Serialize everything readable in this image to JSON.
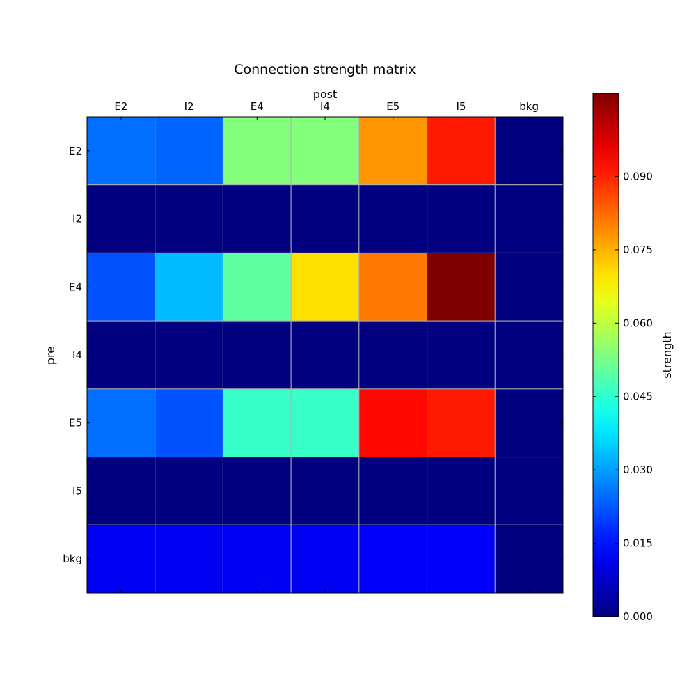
{
  "chart_data": {
    "type": "heatmap",
    "title": "Connection strength matrix",
    "xlabel": "post",
    "ylabel": "pre",
    "x_categories": [
      "E2",
      "I2",
      "E4",
      "I4",
      "E5",
      "I5",
      "bkg"
    ],
    "y_categories": [
      "E2",
      "I2",
      "E4",
      "I4",
      "E5",
      "I5",
      "bkg"
    ],
    "values": [
      [
        0.025,
        0.024,
        0.054,
        0.054,
        0.078,
        0.091,
        0.0
      ],
      [
        0.0,
        0.0,
        0.0,
        0.0,
        0.0,
        0.0,
        0.0
      ],
      [
        0.022,
        0.033,
        0.05,
        0.07,
        0.081,
        0.107,
        0.0
      ],
      [
        0.0,
        0.0,
        0.0,
        0.0,
        0.0,
        0.0,
        0.0
      ],
      [
        0.025,
        0.022,
        0.046,
        0.046,
        0.093,
        0.091,
        0.0
      ],
      [
        0.0,
        0.0,
        0.0,
        0.0,
        0.0,
        0.0,
        0.0
      ],
      [
        0.012,
        0.012,
        0.012,
        0.012,
        0.013,
        0.013,
        0.0
      ]
    ],
    "colorbar": {
      "label": "strength",
      "range": [
        0.0,
        0.107
      ],
      "ticks": [
        0.0,
        0.015,
        0.03,
        0.045,
        0.06,
        0.075,
        0.09
      ],
      "tick_labels": [
        "0.000",
        "0.015",
        "0.030",
        "0.045",
        "0.060",
        "0.075",
        "0.090"
      ],
      "colormap": "jet"
    },
    "grid": true,
    "x_axis_position": "top"
  }
}
